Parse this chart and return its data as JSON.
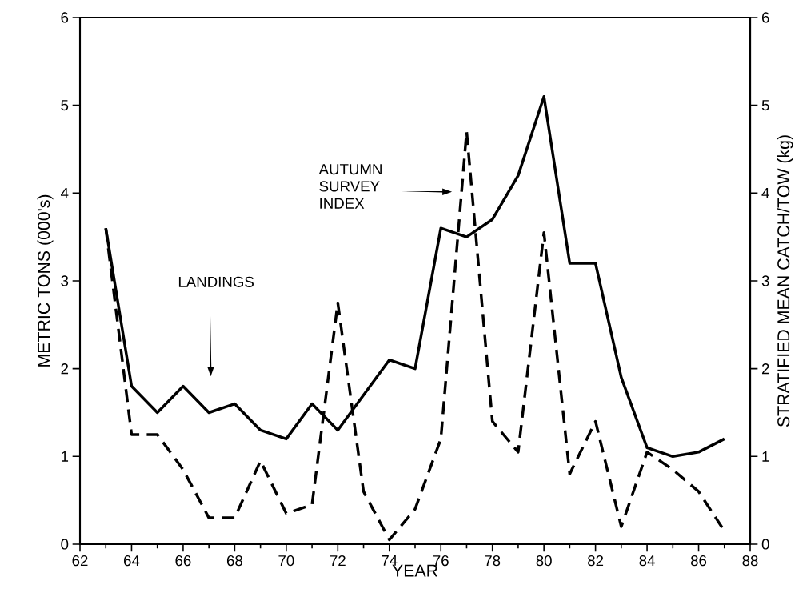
{
  "chart_data": {
    "type": "line",
    "xlabel": "YEAR",
    "ylabel": "METRIC TONS (000's)",
    "y2label": "STRATIFIED MEAN CATCH/TOW (kg)",
    "x": [
      63,
      64,
      65,
      66,
      67,
      68,
      69,
      70,
      71,
      72,
      73,
      74,
      75,
      76,
      77,
      78,
      79,
      80,
      81,
      82,
      83,
      84,
      85,
      86,
      87
    ],
    "series": [
      {
        "color": "#000000",
        "line_style": "solid",
        "values": [
          3.6,
          1.8,
          1.5,
          1.8,
          1.5,
          1.6,
          1.3,
          1.2,
          1.6,
          1.3,
          1.7,
          2.1,
          2.0,
          3.6,
          3.5,
          3.7,
          4.2,
          5.1,
          3.2,
          3.2,
          1.9,
          1.1,
          1.0,
          1.05,
          1.2
        ]
      },
      {
        "color": "#000000",
        "line_style": "dashed",
        "axis": "y2",
        "values": [
          3.6,
          1.25,
          1.25,
          0.85,
          0.3,
          0.3,
          0.95,
          0.35,
          0.45,
          2.75,
          0.6,
          0.05,
          0.4,
          1.2,
          4.7,
          1.4,
          1.05,
          3.55,
          0.8,
          1.4,
          0.2,
          1.05,
          0.85,
          0.6,
          0.15
        ]
      }
    ],
    "xlim": [
      62,
      88
    ],
    "xticks": [
      62,
      64,
      66,
      68,
      70,
      72,
      74,
      76,
      78,
      80,
      82,
      84,
      86,
      88
    ],
    "ylim": [
      0,
      6
    ],
    "yticks": [
      0,
      1,
      2,
      3,
      4,
      5,
      6
    ],
    "y2lim": [
      0,
      6
    ],
    "y2ticks": [
      0,
      1,
      2,
      3,
      4,
      5,
      6
    ],
    "annotations": [
      "LANDINGS",
      "AUTUMN SURVEY INDEX"
    ],
    "grid": false,
    "marker": "none"
  }
}
